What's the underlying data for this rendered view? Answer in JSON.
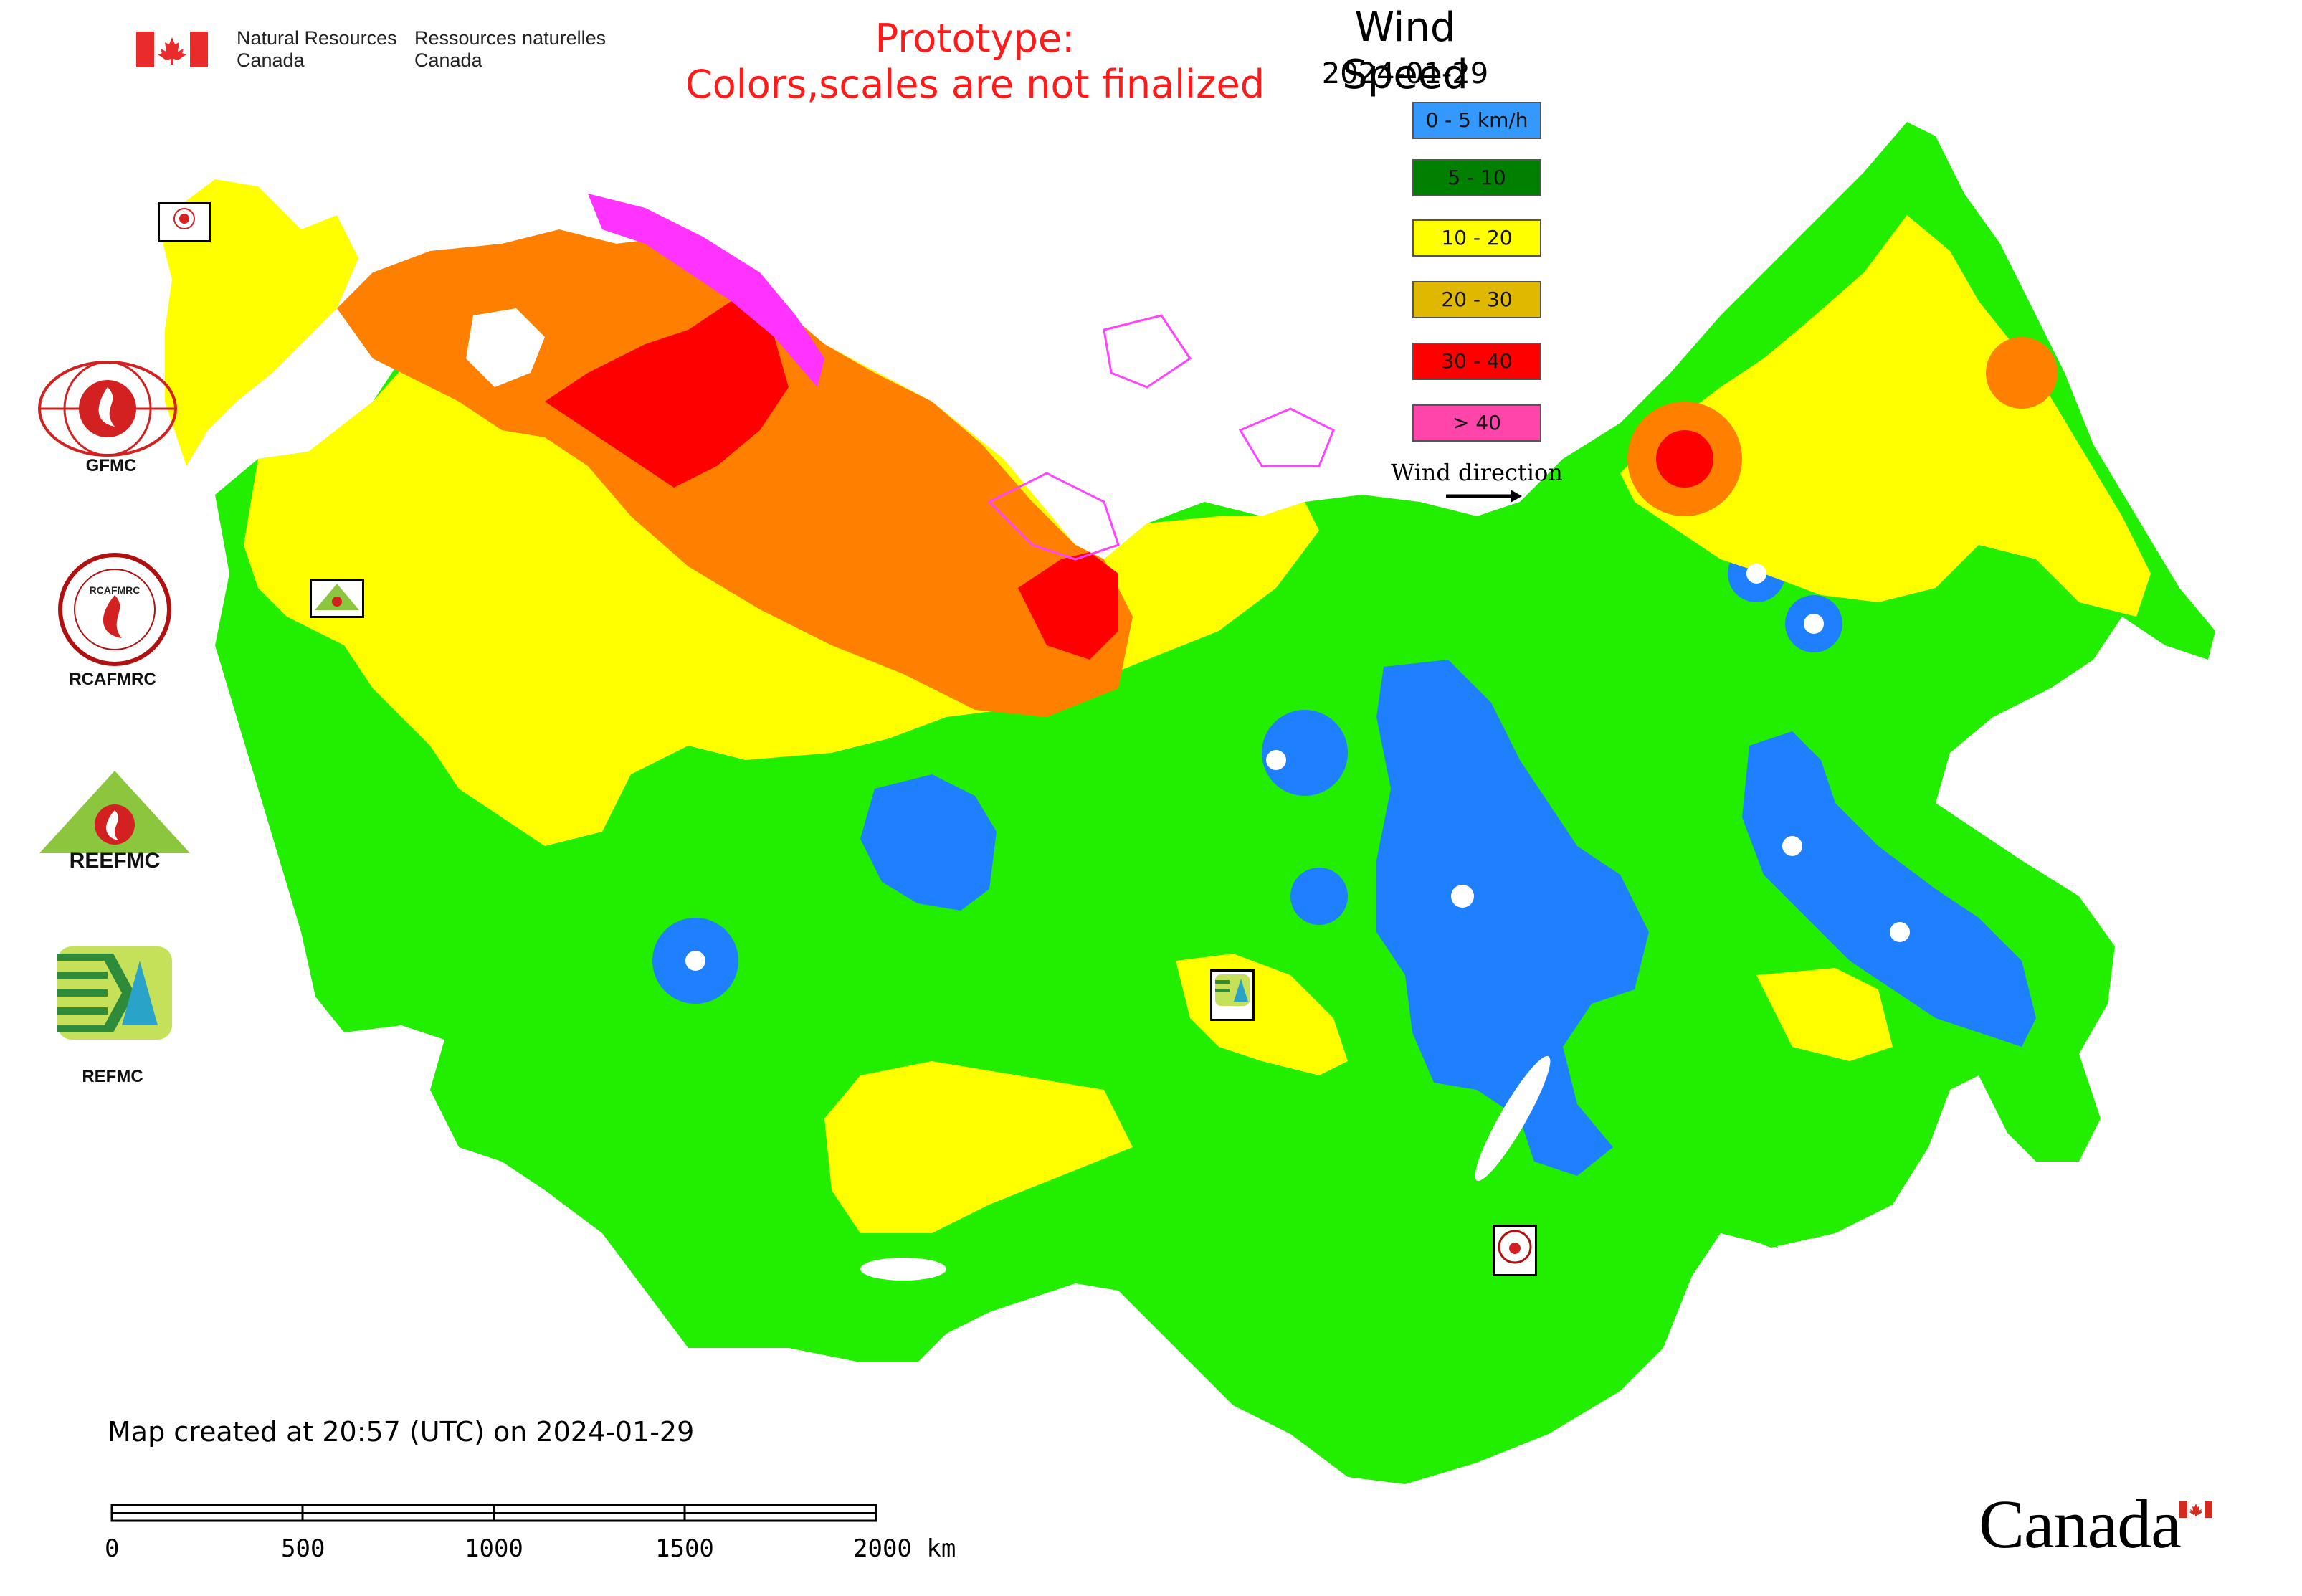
{
  "header": {
    "dept_en_line1": "Natural Resources",
    "dept_en_line2": "Canada",
    "dept_fr_line1": "Ressources naturelles",
    "dept_fr_line2": "Canada",
    "prototype_line1": "Prototype:",
    "prototype_line2": "Colors,scales are not finalized"
  },
  "map": {
    "title": "Wind Speed",
    "date": "2024-01-29",
    "legend": [
      {
        "label": "0 - 5 km/h",
        "color": "#3399ff"
      },
      {
        "label": "5 - 10",
        "color": "#007f00"
      },
      {
        "label": "10 - 20",
        "color": "#ffff00"
      },
      {
        "label": "20 - 30",
        "color": "#e0b800"
      },
      {
        "label": "30 - 40",
        "color": "#ff0000"
      },
      {
        "label": "> 40",
        "color": "#ff44aa"
      }
    ],
    "wind_direction_label": "Wind direction",
    "map_colors": {
      "base": "#22ee00",
      "low": "#1f80ff",
      "mid": "#ffff00",
      "high": "#ff8000",
      "very_high": "#ff0000",
      "extreme": "#ff33ff"
    }
  },
  "logos": {
    "gfmc": "GFMC",
    "rcafmrc": "RCAFMRC",
    "reefmc": "REEFMC",
    "refmc": "REFMC",
    "reefmc_text": "REEFMC"
  },
  "footer": {
    "created": "Map created at 20:57 (UTC) on 2024-01-29",
    "scale_labels": [
      "0",
      "500",
      "1000",
      "1500",
      "2000 km"
    ],
    "wordmark": "Canada"
  }
}
